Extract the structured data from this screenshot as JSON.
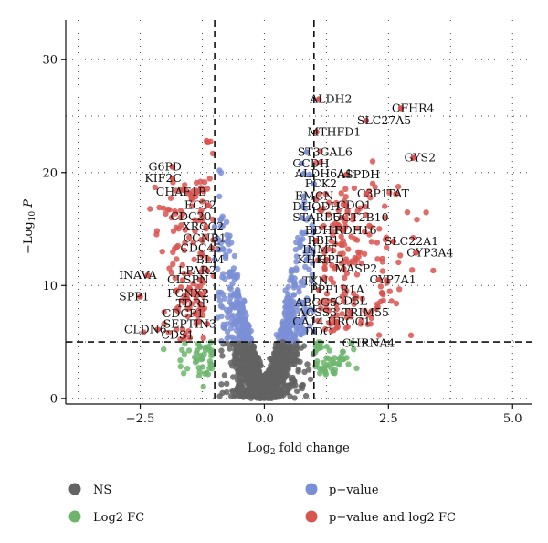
{
  "chart_data": {
    "type": "scatter",
    "title": "",
    "xlabel": "Log2 fold change",
    "ylabel": "-Log10 P",
    "xlim": [
      -4,
      5.4
    ],
    "ylim": [
      -0.5,
      33.5
    ],
    "xticks": [
      -2.5,
      0.0,
      2.5,
      5.0
    ],
    "xtick_labels": [
      "−2.5",
      "0.0",
      "2.5",
      "5.0"
    ],
    "yticks": [
      0,
      10,
      20,
      30
    ],
    "ytick_labels": [
      "0",
      "10",
      "20",
      "30"
    ],
    "grid": "dotted",
    "thresholds": {
      "log2fc": [
        -1,
        1
      ],
      "neg_log10_p": 5
    },
    "series": [
      {
        "name": "NS",
        "color": "#636363"
      },
      {
        "name": "Log2 FC",
        "color": "#6db56d"
      },
      {
        "name": "p−value",
        "color": "#7b8fd6"
      },
      {
        "name": "p−value and log2 FC",
        "color": "#d9534f"
      }
    ],
    "labeled_points": [
      {
        "label": "ALDH2",
        "x": 1.1,
        "y": 26.5
      },
      {
        "label": "CFHR4",
        "x": 2.75,
        "y": 25.7
      },
      {
        "label": "SLC27A5",
        "x": 2.05,
        "y": 24.6
      },
      {
        "label": "MTHFD1",
        "x": 1.05,
        "y": 23.6
      },
      {
        "label": "ST3GAL6",
        "x": 0.85,
        "y": 21.8
      },
      {
        "label": "GYS2",
        "x": 3.0,
        "y": 21.3
      },
      {
        "label": "GCDH",
        "x": 0.75,
        "y": 20.8
      },
      {
        "label": "G6PD",
        "x": -1.85,
        "y": 20.5
      },
      {
        "label": "ALDH6A1",
        "x": 0.8,
        "y": 19.9
      },
      {
        "label": "ASPDH",
        "x": 1.65,
        "y": 19.8
      },
      {
        "label": "KIF2C",
        "x": -1.85,
        "y": 19.5
      },
      {
        "label": "PCK2",
        "x": 1.0,
        "y": 19.0
      },
      {
        "label": "CHAF1B",
        "x": -1.35,
        "y": 18.3
      },
      {
        "label": "EMCN",
        "x": 0.8,
        "y": 17.9
      },
      {
        "label": "C3P1",
        "x": 2.05,
        "y": 18.1
      },
      {
        "label": "TAT",
        "x": 2.65,
        "y": 18.1
      },
      {
        "label": "ECT2",
        "x": -1.15,
        "y": 17.1
      },
      {
        "label": "DHODH",
        "x": 0.75,
        "y": 17.0
      },
      {
        "label": "CDO1",
        "x": 1.65,
        "y": 17.1
      },
      {
        "label": "CDC20",
        "x": -1.25,
        "y": 16.1
      },
      {
        "label": "STARD5",
        "x": 0.75,
        "y": 16.0
      },
      {
        "label": "UGT2B10",
        "x": 1.55,
        "y": 16.0
      },
      {
        "label": "XRCC2",
        "x": -1.0,
        "y": 15.2
      },
      {
        "label": "BDH1",
        "x": 1.0,
        "y": 14.9
      },
      {
        "label": "RDH16",
        "x": 1.6,
        "y": 14.9
      },
      {
        "label": "CCNB1",
        "x": -0.95,
        "y": 14.2
      },
      {
        "label": "RBP1",
        "x": 1.05,
        "y": 14.0
      },
      {
        "label": "SLC22A1",
        "x": 2.6,
        "y": 13.9
      },
      {
        "label": "CDC45",
        "x": -1.05,
        "y": 13.3
      },
      {
        "label": "INMT",
        "x": 0.95,
        "y": 13.2
      },
      {
        "label": "CYP3A4",
        "x": 3.05,
        "y": 12.9
      },
      {
        "label": "BLM",
        "x": -1.0,
        "y": 12.3
      },
      {
        "label": "KHK",
        "x": 0.85,
        "y": 12.3
      },
      {
        "label": "HPD",
        "x": 1.25,
        "y": 12.3
      },
      {
        "label": "MASP2",
        "x": 1.6,
        "y": 11.5
      },
      {
        "label": "LPAR2",
        "x": -1.15,
        "y": 11.3
      },
      {
        "label": "INAVA",
        "x": -2.35,
        "y": 10.9
      },
      {
        "label": "CLSPN",
        "x": -1.3,
        "y": 10.5
      },
      {
        "label": "CYP7A1",
        "x": 2.3,
        "y": 10.5
      },
      {
        "label": "TXN",
        "x": 0.95,
        "y": 10.4
      },
      {
        "label": "PPP1R1A",
        "x": 1.1,
        "y": 9.6
      },
      {
        "label": "PCNX2",
        "x": -1.3,
        "y": 9.3
      },
      {
        "label": "SPP1",
        "x": -2.5,
        "y": 9.0
      },
      {
        "label": "ABCG5",
        "x": 0.8,
        "y": 8.5
      },
      {
        "label": "CD5L",
        "x": 1.6,
        "y": 8.6
      },
      {
        "label": "TDRP",
        "x": -1.3,
        "y": 8.4
      },
      {
        "label": "ACSS3",
        "x": 0.85,
        "y": 7.6
      },
      {
        "label": "TRIM55",
        "x": 1.75,
        "y": 7.6
      },
      {
        "label": "CDCP1",
        "x": -1.4,
        "y": 7.5
      },
      {
        "label": "CA14",
        "x": 0.75,
        "y": 6.8
      },
      {
        "label": "UROC1",
        "x": 1.45,
        "y": 6.8
      },
      {
        "label": "SEPTIN3",
        "x": -1.15,
        "y": 6.6
      },
      {
        "label": "CLDN6",
        "x": -2.15,
        "y": 6.1
      },
      {
        "label": "DDC",
        "x": 1.0,
        "y": 5.9
      },
      {
        "label": "CDS1",
        "x": -1.6,
        "y": 5.6
      },
      {
        "label": "CHRNA4",
        "x": 1.75,
        "y": 4.9
      }
    ]
  }
}
